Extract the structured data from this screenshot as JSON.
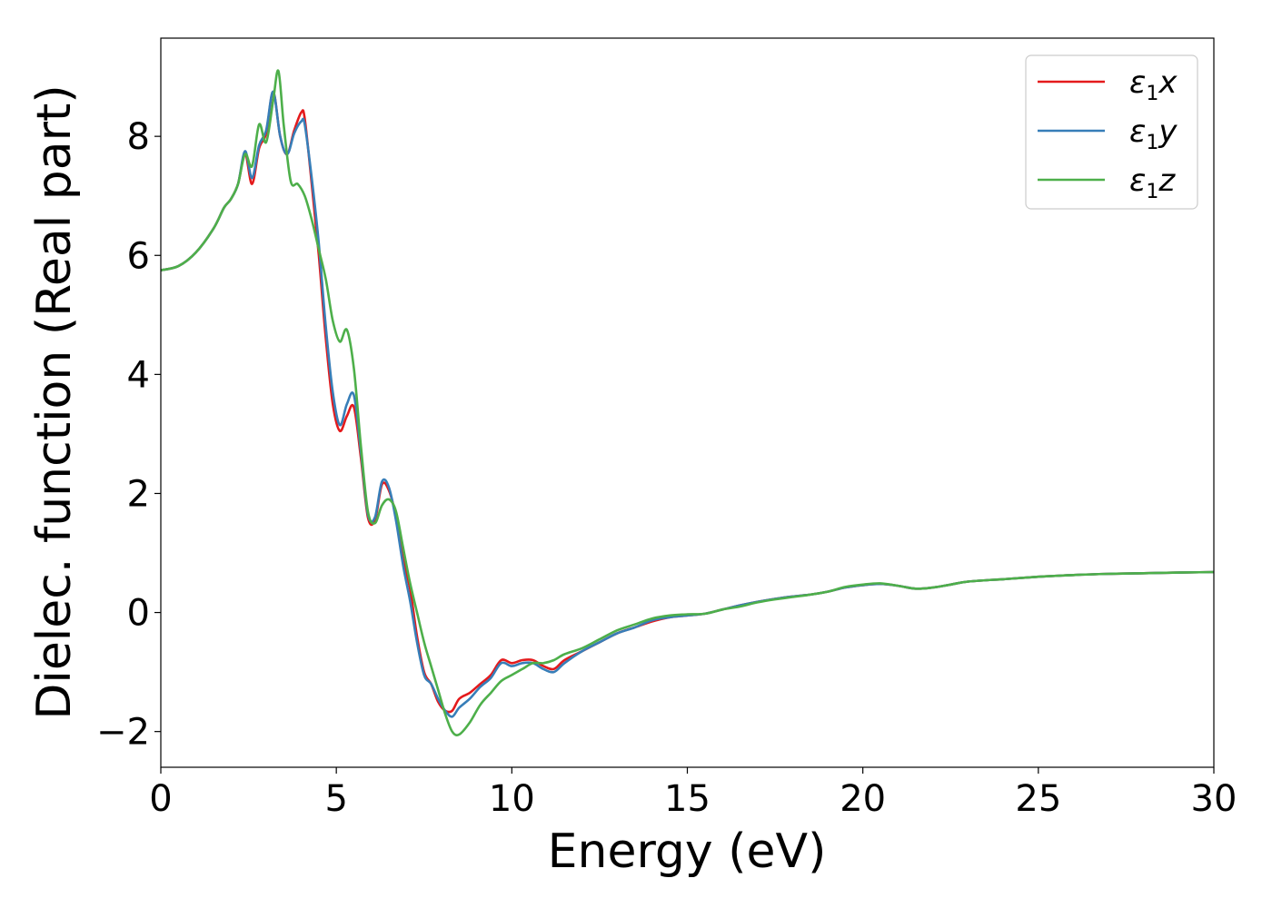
{
  "chart_data": {
    "type": "line",
    "xlabel": "Energy (eV)",
    "ylabel": "Dielec. function (Real part)",
    "xlim": [
      0,
      30
    ],
    "ylim": [
      -2.6,
      9.65
    ],
    "xticks": [
      0,
      5,
      10,
      15,
      20,
      25,
      30
    ],
    "xtick_labels": [
      "0",
      "5",
      "10",
      "15",
      "20",
      "25",
      "30"
    ],
    "yticks": [
      -2,
      0,
      2,
      4,
      6,
      8
    ],
    "ytick_labels": [
      "−2",
      "0",
      "2",
      "4",
      "6",
      "8"
    ],
    "grid": false,
    "legend_position": "top-right",
    "series": [
      {
        "name": "ε1x",
        "symbol": "ε",
        "subscript": "1",
        "suffix": "x",
        "color": "#e41a1c",
        "x": [
          0,
          0.5,
          1.0,
          1.5,
          1.8,
          2.0,
          2.2,
          2.4,
          2.6,
          2.8,
          3.0,
          3.2,
          3.4,
          3.6,
          3.8,
          4.0,
          4.1,
          4.3,
          4.5,
          4.7,
          4.9,
          5.1,
          5.3,
          5.5,
          5.7,
          5.9,
          6.1,
          6.3,
          6.5,
          6.7,
          6.9,
          7.1,
          7.3,
          7.5,
          7.7,
          7.9,
          8.1,
          8.3,
          8.5,
          8.8,
          9.1,
          9.4,
          9.7,
          10.0,
          10.3,
          10.6,
          10.9,
          11.2,
          11.5,
          12.0,
          12.5,
          13.0,
          13.5,
          14.0,
          14.5,
          15.0,
          15.5,
          16.0,
          16.5,
          17.0,
          17.5,
          18.0,
          18.5,
          19.0,
          19.5,
          20.0,
          20.5,
          21.0,
          21.5,
          22.0,
          22.5,
          23.0,
          24.0,
          25.0,
          26.0,
          27.0,
          28.0,
          29.0,
          30.0
        ],
        "y": [
          5.75,
          5.82,
          6.05,
          6.45,
          6.8,
          6.95,
          7.2,
          7.7,
          7.2,
          7.8,
          8.05,
          8.75,
          8.0,
          7.7,
          8.1,
          8.4,
          8.3,
          7.2,
          6.0,
          4.6,
          3.5,
          3.05,
          3.3,
          3.45,
          2.6,
          1.6,
          1.55,
          2.15,
          2.05,
          1.6,
          0.9,
          0.4,
          -0.4,
          -1.0,
          -1.2,
          -1.5,
          -1.65,
          -1.65,
          -1.45,
          -1.35,
          -1.2,
          -1.05,
          -0.8,
          -0.85,
          -0.8,
          -0.8,
          -0.9,
          -0.95,
          -0.8,
          -0.65,
          -0.5,
          -0.35,
          -0.25,
          -0.15,
          -0.08,
          -0.05,
          -0.02,
          0.05,
          0.12,
          0.18,
          0.23,
          0.27,
          0.3,
          0.35,
          0.42,
          0.46,
          0.48,
          0.45,
          0.4,
          0.42,
          0.47,
          0.52,
          0.56,
          0.6,
          0.63,
          0.65,
          0.66,
          0.67,
          0.68
        ]
      },
      {
        "name": "ε1y",
        "symbol": "ε",
        "subscript": "1",
        "suffix": "y",
        "color": "#377eb8",
        "x": [
          0,
          0.5,
          1.0,
          1.5,
          1.8,
          2.0,
          2.2,
          2.4,
          2.6,
          2.8,
          3.0,
          3.2,
          3.4,
          3.6,
          3.8,
          4.0,
          4.1,
          4.3,
          4.5,
          4.7,
          4.9,
          5.1,
          5.3,
          5.5,
          5.7,
          5.9,
          6.1,
          6.3,
          6.5,
          6.7,
          6.9,
          7.1,
          7.3,
          7.5,
          7.7,
          7.9,
          8.1,
          8.3,
          8.5,
          8.8,
          9.1,
          9.4,
          9.7,
          10.0,
          10.3,
          10.6,
          10.9,
          11.2,
          11.5,
          12.0,
          12.5,
          13.0,
          13.5,
          14.0,
          14.5,
          15.0,
          15.5,
          16.0,
          16.5,
          17.0,
          17.5,
          18.0,
          18.5,
          19.0,
          19.5,
          20.0,
          20.5,
          21.0,
          21.5,
          22.0,
          22.5,
          23.0,
          24.0,
          25.0,
          26.0,
          27.0,
          28.0,
          29.0,
          30.0
        ],
        "y": [
          5.75,
          5.82,
          6.05,
          6.45,
          6.8,
          6.95,
          7.2,
          7.75,
          7.3,
          7.85,
          8.1,
          8.75,
          8.0,
          7.7,
          8.05,
          8.25,
          8.2,
          7.3,
          6.2,
          4.8,
          3.7,
          3.15,
          3.5,
          3.65,
          2.7,
          1.65,
          1.6,
          2.2,
          2.1,
          1.55,
          0.8,
          0.2,
          -0.5,
          -1.05,
          -1.2,
          -1.45,
          -1.65,
          -1.75,
          -1.6,
          -1.45,
          -1.25,
          -1.1,
          -0.85,
          -0.9,
          -0.85,
          -0.85,
          -0.95,
          -1.0,
          -0.85,
          -0.65,
          -0.5,
          -0.35,
          -0.25,
          -0.13,
          -0.08,
          -0.05,
          -0.02,
          0.05,
          0.12,
          0.18,
          0.23,
          0.27,
          0.3,
          0.35,
          0.42,
          0.46,
          0.48,
          0.45,
          0.4,
          0.42,
          0.47,
          0.52,
          0.56,
          0.6,
          0.63,
          0.65,
          0.66,
          0.67,
          0.68
        ]
      },
      {
        "name": "ε1z",
        "symbol": "ε",
        "subscript": "1",
        "suffix": "z",
        "color": "#4daf4a",
        "x": [
          0,
          0.5,
          1.0,
          1.5,
          1.8,
          2.0,
          2.2,
          2.4,
          2.6,
          2.8,
          3.0,
          3.2,
          3.35,
          3.5,
          3.7,
          3.9,
          4.1,
          4.3,
          4.5,
          4.7,
          4.9,
          5.1,
          5.3,
          5.5,
          5.7,
          5.9,
          6.1,
          6.3,
          6.5,
          6.7,
          6.9,
          7.1,
          7.3,
          7.5,
          7.7,
          7.9,
          8.1,
          8.3,
          8.5,
          8.8,
          9.1,
          9.4,
          9.7,
          10.0,
          10.3,
          10.6,
          10.9,
          11.2,
          11.5,
          12.0,
          12.5,
          13.0,
          13.5,
          14.0,
          14.5,
          15.0,
          15.5,
          16.0,
          16.5,
          17.0,
          17.5,
          18.0,
          18.5,
          19.0,
          19.5,
          20.0,
          20.5,
          21.0,
          21.5,
          22.0,
          22.5,
          23.0,
          24.0,
          25.0,
          26.0,
          27.0,
          28.0,
          29.0,
          30.0
        ],
        "y": [
          5.75,
          5.82,
          6.05,
          6.45,
          6.8,
          6.95,
          7.2,
          7.7,
          7.5,
          8.2,
          7.9,
          8.6,
          9.1,
          8.2,
          7.25,
          7.2,
          7.0,
          6.6,
          6.1,
          5.6,
          4.9,
          4.55,
          4.75,
          4.1,
          2.8,
          1.7,
          1.5,
          1.8,
          1.9,
          1.7,
          1.1,
          0.5,
          0.0,
          -0.5,
          -0.9,
          -1.3,
          -1.7,
          -2.0,
          -2.05,
          -1.85,
          -1.55,
          -1.35,
          -1.15,
          -1.05,
          -0.95,
          -0.85,
          -0.85,
          -0.8,
          -0.7,
          -0.6,
          -0.45,
          -0.3,
          -0.2,
          -0.1,
          -0.05,
          -0.03,
          -0.02,
          0.05,
          0.1,
          0.17,
          0.22,
          0.26,
          0.3,
          0.35,
          0.43,
          0.47,
          0.49,
          0.45,
          0.4,
          0.42,
          0.47,
          0.52,
          0.56,
          0.6,
          0.63,
          0.65,
          0.66,
          0.67,
          0.68
        ]
      }
    ]
  }
}
